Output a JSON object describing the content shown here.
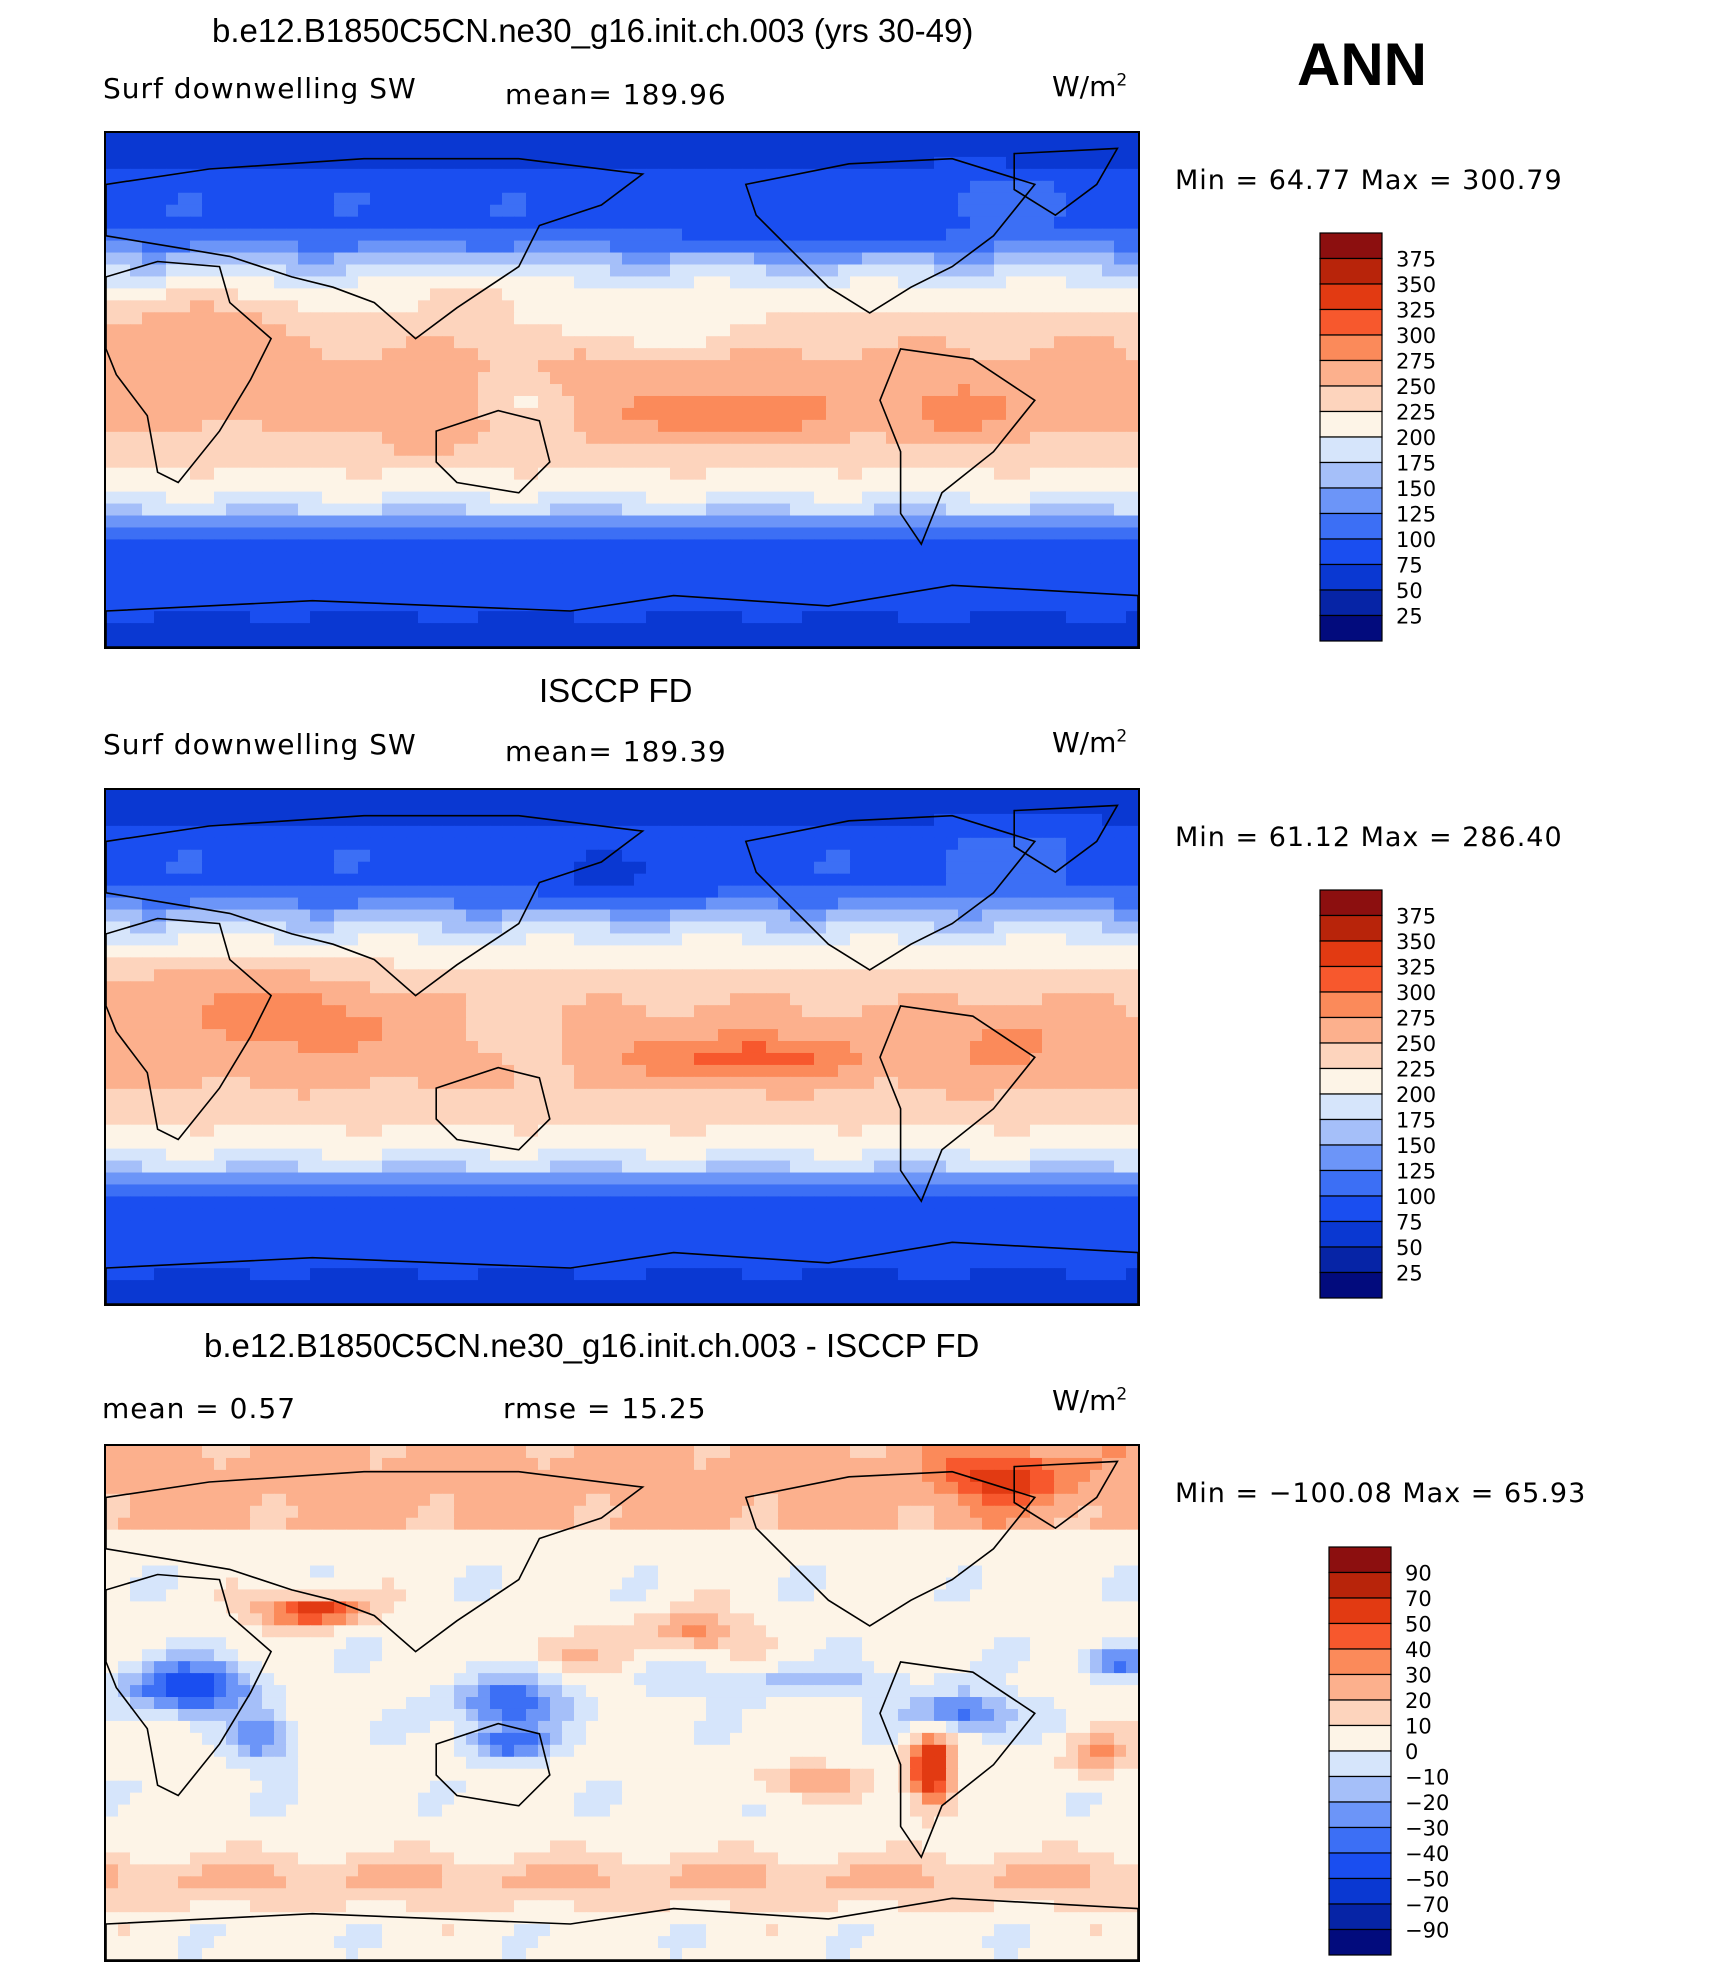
{
  "season": "ANN",
  "colors": {
    "abs_scale": [
      "#020b7d",
      "#0624a6",
      "#0a38d2",
      "#1a4ef0",
      "#3c6ff5",
      "#6c95f8",
      "#a5bff9",
      "#d6e5fb",
      "#fdf4e7",
      "#fdd4bd",
      "#fcb08d",
      "#fb8a5a",
      "#f7582d",
      "#e23a12",
      "#b8240a",
      "#8c0f0f"
    ],
    "diff_scale": [
      "#020b7d",
      "#0624a6",
      "#0a38d2",
      "#1a4ef0",
      "#3c6ff5",
      "#6c95f8",
      "#a5bff9",
      "#d6e5fb",
      "#fdf4e7",
      "#fdd4bd",
      "#fcb08d",
      "#fb8a5a",
      "#f7582d",
      "#e23a12",
      "#b8240a",
      "#8c0f0f"
    ]
  },
  "panels": [
    {
      "title": "b.e12.B1850C5CN.ne30_g16.init.ch.003 (yrs 30-49)",
      "left_label": "Surf  downwelling  SW",
      "center_label": "mean=  189.96",
      "units": "W/m",
      "units_sup": "2",
      "minmax": "Min  =    64.77  Max  =  300.79",
      "levels": [
        "375",
        "350",
        "325",
        "300",
        "275",
        "250",
        "225",
        "200",
        "175",
        "150",
        "125",
        "100",
        "75",
        "50",
        "25"
      ],
      "field": "model"
    },
    {
      "title": "ISCCP FD",
      "left_label": "Surf  downwelling  SW",
      "center_label": "mean=  189.39",
      "units": "W/m",
      "units_sup": "2",
      "minmax": "Min  =    61.12  Max  =  286.40",
      "levels": [
        "375",
        "350",
        "325",
        "300",
        "275",
        "250",
        "225",
        "200",
        "175",
        "150",
        "125",
        "100",
        "75",
        "50",
        "25"
      ],
      "field": "obs"
    },
    {
      "title": "b.e12.B1850C5CN.ne30_g16.init.ch.003 - ISCCP FD",
      "left_label": "mean  =     0.57",
      "center_label": "rmse  =    15.25",
      "units": "W/m",
      "units_sup": "2",
      "minmax": "Min  =  −100.08  Max  =    65.93",
      "levels": [
        "90",
        "70",
        "50",
        "40",
        "30",
        "20",
        "10",
        "0",
        "−10",
        "−20",
        "−30",
        "−40",
        "−50",
        "−70",
        "−90"
      ],
      "field": "diff"
    }
  ],
  "chart_data": [
    {
      "type": "heatmap",
      "title": "b.e12.B1850C5CN.ne30_g16.init.ch.003 (yrs 30-49)",
      "variable": "Surf  downwelling  SW",
      "units": "W/m2",
      "mean": 189.96,
      "min": 64.77,
      "max": 300.79,
      "contour_levels": [
        25,
        50,
        75,
        100,
        125,
        150,
        175,
        200,
        225,
        250,
        275,
        300,
        325,
        350,
        375
      ]
    },
    {
      "type": "heatmap",
      "title": "ISCCP FD",
      "variable": "Surf  downwelling  SW",
      "units": "W/m2",
      "mean": 189.39,
      "min": 61.12,
      "max": 286.4,
      "contour_levels": [
        25,
        50,
        75,
        100,
        125,
        150,
        175,
        200,
        225,
        250,
        275,
        300,
        325,
        350,
        375
      ]
    },
    {
      "type": "heatmap",
      "title": "b.e12.B1850C5CN.ne30_g16.init.ch.003 - ISCCP FD",
      "units": "W/m2",
      "mean": 0.57,
      "rmse": 15.25,
      "min": -100.08,
      "max": 65.93,
      "contour_levels": [
        -90,
        -70,
        -50,
        -40,
        -30,
        -20,
        -10,
        0,
        10,
        20,
        30,
        40,
        50,
        70,
        90
      ]
    }
  ]
}
